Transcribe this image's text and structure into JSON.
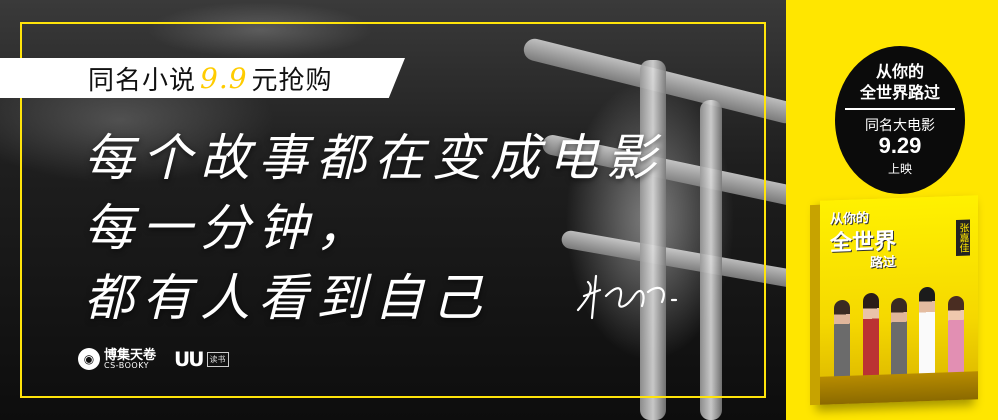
{
  "promo": {
    "prefix": "同名小说",
    "price": "9.9",
    "suffix": "元抢购"
  },
  "slogan": {
    "line1": "每个故事都在变成电影",
    "line2": "每一分钟，",
    "line3": "都有人看到自己"
  },
  "logos": {
    "publisher_cn": "博集天卷",
    "publisher_en": "CS-BOOKY",
    "partner_tag": "读书"
  },
  "movie_badge": {
    "title_line1": "从你的",
    "title_line2": "全世界路过",
    "subtitle": "同名大电影",
    "date": "9.29",
    "release": "上映"
  },
  "book": {
    "title_top": "从你的",
    "title_main": "全世界",
    "title_end": "路过",
    "author": "张嘉佳"
  },
  "colors": {
    "accent_yellow": "#ffe600",
    "price_yellow": "#ffcc00",
    "badge_black": "#0b0b0b"
  }
}
